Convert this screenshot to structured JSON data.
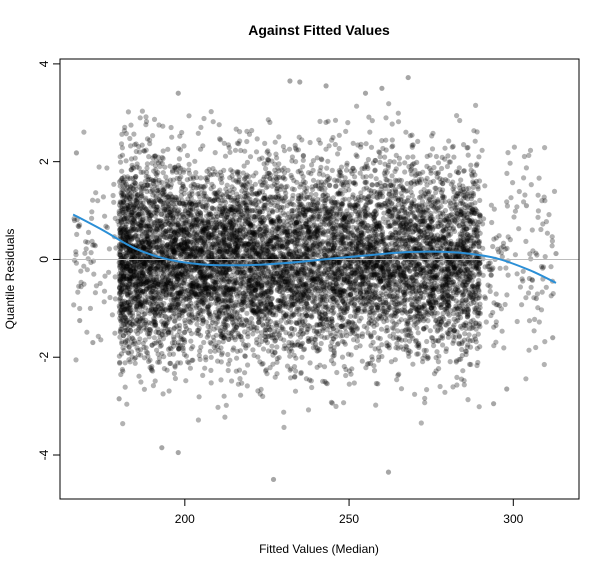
{
  "chart_data": {
    "type": "scatter",
    "title": "Against Fitted Values",
    "xlabel": "Fitted Values (Median)",
    "ylabel": "Quantile Residuals",
    "xlim": [
      162,
      320
    ],
    "ylim": [
      -4.9,
      4.1
    ],
    "x_ticks": [
      200,
      250,
      300
    ],
    "y_ticks": [
      -4,
      -2,
      0,
      2,
      4
    ],
    "reference_line_y": 0,
    "colors": {
      "points": "#000000",
      "smooth": "#2b8fd6",
      "reference_line": "#bbbbbb",
      "frame": "#000000"
    },
    "point_opacity": 0.3,
    "scatter_summary": {
      "x_range_points": [
        166,
        313
      ],
      "dense_x_range": [
        180,
        290
      ],
      "residual_spread_sd": 1.0,
      "n_points_approx": 9000
    },
    "smooth_curve": {
      "x": [
        166,
        175,
        185,
        195,
        205,
        215,
        225,
        235,
        245,
        255,
        265,
        275,
        285,
        295,
        305,
        313
      ],
      "y": [
        0.92,
        0.6,
        0.22,
        0.0,
        -0.1,
        -0.12,
        -0.1,
        -0.05,
        0.02,
        0.08,
        0.14,
        0.16,
        0.13,
        0.02,
        -0.22,
        -0.48
      ]
    },
    "outliers": [
      {
        "x": 227,
        "y": -4.5
      },
      {
        "x": 262,
        "y": -4.35
      },
      {
        "x": 198,
        "y": -3.95
      },
      {
        "x": 193,
        "y": -3.85
      },
      {
        "x": 268,
        "y": 3.72
      },
      {
        "x": 232,
        "y": 3.65
      },
      {
        "x": 235,
        "y": 3.63
      },
      {
        "x": 243,
        "y": 3.55
      },
      {
        "x": 255,
        "y": 3.4
      },
      {
        "x": 260,
        "y": 3.5
      },
      {
        "x": 198,
        "y": 3.4
      },
      {
        "x": 167,
        "y": 2.18
      },
      {
        "x": 168,
        "y": -1.25
      },
      {
        "x": 313,
        "y": 0.12
      },
      {
        "x": 312,
        "y": -1.6
      },
      {
        "x": 307,
        "y": -0.8
      },
      {
        "x": 304,
        "y": 1.1
      },
      {
        "x": 298,
        "y": -2.65
      },
      {
        "x": 294,
        "y": -2.95
      },
      {
        "x": 180,
        "y": -2.85
      },
      {
        "x": 172,
        "y": -1.7
      }
    ]
  }
}
